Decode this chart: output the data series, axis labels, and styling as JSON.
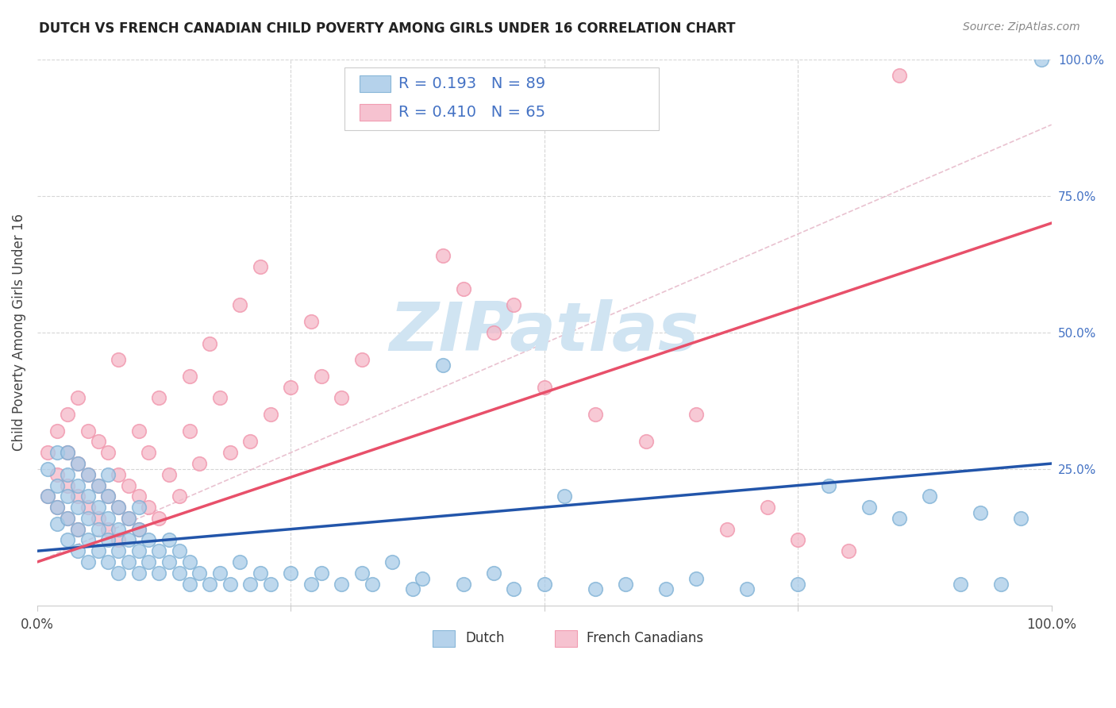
{
  "title": "DUTCH VS FRENCH CANADIAN CHILD POVERTY AMONG GIRLS UNDER 16 CORRELATION CHART",
  "source": "Source: ZipAtlas.com",
  "ylabel": "Child Poverty Among Girls Under 16",
  "legend_R": [
    0.193,
    0.41
  ],
  "legend_N": [
    89,
    65
  ],
  "dutch_color": "#A8CBE8",
  "french_color": "#F5B8C8",
  "dutch_edge_color": "#7BAFD4",
  "french_edge_color": "#F090A8",
  "dutch_line_color": "#2255AA",
  "french_line_color": "#E8506A",
  "dashed_line_color": "#E8A0B4",
  "watermark_color": "#D0E4F2",
  "right_tick_color": "#4472C4",
  "background_color": "#FFFFFF",
  "grid_color": "#CCCCCC",
  "dutch_intercept": 0.1,
  "dutch_slope": 0.16,
  "french_intercept": 0.08,
  "french_slope": 0.62,
  "dashed_intercept": 0.08,
  "dashed_slope": 0.8
}
